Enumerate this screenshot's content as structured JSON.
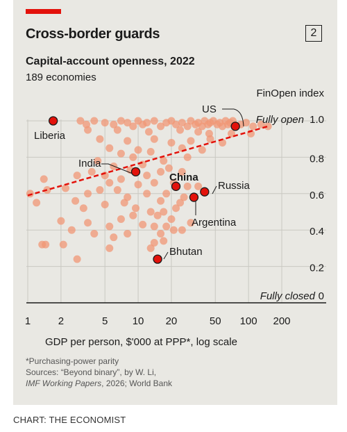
{
  "header": {
    "title": "Cross-border guards",
    "badge": "2",
    "subtitle": "Capital-account openness, 2022",
    "subtitle2": "189 economies"
  },
  "chart_data": {
    "type": "scatter",
    "title": "Cross-border guards",
    "subtitle": "Capital-account openness, 2022",
    "xlabel": "GDP per person, $'000 at PPP*, log scale",
    "ylabel": "FinOpen index",
    "xscale": "log",
    "xlim": [
      1,
      200
    ],
    "ylim": [
      0,
      1.0
    ],
    "x_ticks": [
      {
        "value": 1,
        "label": "1"
      },
      {
        "value": 2,
        "label": "2"
      },
      {
        "value": 5,
        "label": "5"
      },
      {
        "value": 10,
        "label": "10"
      },
      {
        "value": 20,
        "label": "20"
      },
      {
        "value": 50,
        "label": "50"
      },
      {
        "value": 100,
        "label": "100"
      },
      {
        "value": 200,
        "label": "200"
      }
    ],
    "y_ticks": [
      {
        "value": 0,
        "label": "0"
      },
      {
        "value": 0.2,
        "label": "0.2"
      },
      {
        "value": 0.4,
        "label": "0.4"
      },
      {
        "value": 0.6,
        "label": "0.6"
      },
      {
        "value": 0.8,
        "label": "0.8"
      },
      {
        "value": 1.0,
        "label": "1.0"
      }
    ],
    "y_end_labels": {
      "top": "Fully open",
      "bottom": "Fully closed"
    },
    "grid": true,
    "colors": {
      "points": "#f09775",
      "highlight": "#e3120b",
      "trend": "#e3120b"
    },
    "trendline": {
      "x": [
        1,
        150
      ],
      "y": [
        0.59,
        0.97
      ]
    },
    "highlighted": [
      {
        "label": "Liberia",
        "x": 1.7,
        "y": 1.0
      },
      {
        "label": "US",
        "x": 76,
        "y": 0.97
      },
      {
        "label": "India",
        "x": 9.5,
        "y": 0.72
      },
      {
        "label": "China",
        "x": 22,
        "y": 0.64
      },
      {
        "label": "Russia",
        "x": 40,
        "y": 0.61
      },
      {
        "label": "Argentina",
        "x": 32,
        "y": 0.58
      },
      {
        "label": "Bhutan",
        "x": 15,
        "y": 0.24
      }
    ],
    "points": [
      {
        "x": 3,
        "y": 1.0
      },
      {
        "x": 3.4,
        "y": 0.98
      },
      {
        "x": 4,
        "y": 1.0
      },
      {
        "x": 5,
        "y": 0.99
      },
      {
        "x": 6,
        "y": 0.98
      },
      {
        "x": 7,
        "y": 1.0
      },
      {
        "x": 8,
        "y": 0.99
      },
      {
        "x": 9,
        "y": 0.97
      },
      {
        "x": 10,
        "y": 1.0
      },
      {
        "x": 11,
        "y": 0.98
      },
      {
        "x": 12,
        "y": 0.99
      },
      {
        "x": 14,
        "y": 1.0
      },
      {
        "x": 16,
        "y": 0.97
      },
      {
        "x": 18,
        "y": 0.99
      },
      {
        "x": 20,
        "y": 1.0
      },
      {
        "x": 22,
        "y": 0.98
      },
      {
        "x": 25,
        "y": 0.99
      },
      {
        "x": 28,
        "y": 0.97
      },
      {
        "x": 30,
        "y": 1.0
      },
      {
        "x": 33,
        "y": 0.98
      },
      {
        "x": 35,
        "y": 0.99
      },
      {
        "x": 38,
        "y": 0.97
      },
      {
        "x": 40,
        "y": 1.0
      },
      {
        "x": 43,
        "y": 0.98
      },
      {
        "x": 45,
        "y": 0.99
      },
      {
        "x": 48,
        "y": 1.0
      },
      {
        "x": 52,
        "y": 0.98
      },
      {
        "x": 55,
        "y": 0.99
      },
      {
        "x": 58,
        "y": 0.97
      },
      {
        "x": 62,
        "y": 1.0
      },
      {
        "x": 65,
        "y": 0.98
      },
      {
        "x": 68,
        "y": 0.99
      },
      {
        "x": 72,
        "y": 1.0
      },
      {
        "x": 85,
        "y": 0.98
      },
      {
        "x": 95,
        "y": 0.99
      },
      {
        "x": 110,
        "y": 0.97
      },
      {
        "x": 130,
        "y": 0.98
      },
      {
        "x": 150,
        "y": 0.97
      },
      {
        "x": 3.5,
        "y": 0.95
      },
      {
        "x": 6.5,
        "y": 0.95
      },
      {
        "x": 12.5,
        "y": 0.94
      },
      {
        "x": 24,
        "y": 0.95
      },
      {
        "x": 35,
        "y": 0.94
      },
      {
        "x": 44,
        "y": 0.93
      },
      {
        "x": 70,
        "y": 0.93
      },
      {
        "x": 105,
        "y": 0.93
      },
      {
        "x": 4.5,
        "y": 0.9
      },
      {
        "x": 8,
        "y": 0.89
      },
      {
        "x": 14,
        "y": 0.9
      },
      {
        "x": 20,
        "y": 0.88
      },
      {
        "x": 30,
        "y": 0.89
      },
      {
        "x": 45,
        "y": 0.9
      },
      {
        "x": 58,
        "y": 0.88
      },
      {
        "x": 5.5,
        "y": 0.85
      },
      {
        "x": 10,
        "y": 0.84
      },
      {
        "x": 13,
        "y": 0.83
      },
      {
        "x": 25,
        "y": 0.85
      },
      {
        "x": 38,
        "y": 0.84
      },
      {
        "x": 7,
        "y": 0.82
      },
      {
        "x": 17,
        "y": 0.78
      },
      {
        "x": 28,
        "y": 0.8
      },
      {
        "x": 11,
        "y": 0.76
      },
      {
        "x": 4.3,
        "y": 0.78
      },
      {
        "x": 6,
        "y": 0.75
      },
      {
        "x": 19,
        "y": 0.74
      },
      {
        "x": 9,
        "y": 0.8
      },
      {
        "x": 3.8,
        "y": 0.72
      },
      {
        "x": 5,
        "y": 0.7
      },
      {
        "x": 8.5,
        "y": 0.73
      },
      {
        "x": 16,
        "y": 0.72
      },
      {
        "x": 12,
        "y": 0.7
      },
      {
        "x": 25,
        "y": 0.72
      },
      {
        "x": 2.8,
        "y": 0.7
      },
      {
        "x": 5.5,
        "y": 0.66
      },
      {
        "x": 7,
        "y": 0.68
      },
      {
        "x": 10,
        "y": 0.65
      },
      {
        "x": 14,
        "y": 0.66
      },
      {
        "x": 21,
        "y": 0.66
      },
      {
        "x": 28,
        "y": 0.64
      },
      {
        "x": 35,
        "y": 0.64
      },
      {
        "x": 1.4,
        "y": 0.68
      },
      {
        "x": 3.5,
        "y": 0.6
      },
      {
        "x": 4.5,
        "y": 0.62
      },
      {
        "x": 6.5,
        "y": 0.62
      },
      {
        "x": 8,
        "y": 0.58
      },
      {
        "x": 12,
        "y": 0.6
      },
      {
        "x": 16,
        "y": 0.56
      },
      {
        "x": 18,
        "y": 0.6
      },
      {
        "x": 26,
        "y": 0.58
      },
      {
        "x": 1.05,
        "y": 0.6
      },
      {
        "x": 1.5,
        "y": 0.62
      },
      {
        "x": 2.2,
        "y": 0.63
      },
      {
        "x": 2.7,
        "y": 0.56
      },
      {
        "x": 1.2,
        "y": 0.55
      },
      {
        "x": 3.2,
        "y": 0.52
      },
      {
        "x": 5,
        "y": 0.54
      },
      {
        "x": 7.5,
        "y": 0.55
      },
      {
        "x": 9.5,
        "y": 0.52
      },
      {
        "x": 13,
        "y": 0.5
      },
      {
        "x": 15,
        "y": 0.48
      },
      {
        "x": 17,
        "y": 0.5
      },
      {
        "x": 20,
        "y": 0.46
      },
      {
        "x": 22,
        "y": 0.52
      },
      {
        "x": 24,
        "y": 0.55
      },
      {
        "x": 2,
        "y": 0.45
      },
      {
        "x": 2.5,
        "y": 0.4
      },
      {
        "x": 3.5,
        "y": 0.44
      },
      {
        "x": 4,
        "y": 0.38
      },
      {
        "x": 5.5,
        "y": 0.42
      },
      {
        "x": 7,
        "y": 0.46
      },
      {
        "x": 8,
        "y": 0.38
      },
      {
        "x": 11,
        "y": 0.43
      },
      {
        "x": 14,
        "y": 0.42
      },
      {
        "x": 16,
        "y": 0.38
      },
      {
        "x": 18,
        "y": 0.42
      },
      {
        "x": 21,
        "y": 0.4
      },
      {
        "x": 25,
        "y": 0.4
      },
      {
        "x": 30,
        "y": 0.44
      },
      {
        "x": 6,
        "y": 0.36
      },
      {
        "x": 17,
        "y": 0.34
      },
      {
        "x": 1.35,
        "y": 0.32
      },
      {
        "x": 1.45,
        "y": 0.32
      },
      {
        "x": 2.1,
        "y": 0.32
      },
      {
        "x": 5.5,
        "y": 0.3
      },
      {
        "x": 14,
        "y": 0.33
      },
      {
        "x": 13,
        "y": 0.3
      },
      {
        "x": 2.8,
        "y": 0.24
      },
      {
        "x": 9,
        "y": 0.48
      }
    ]
  },
  "footer": {
    "footnote": "*Purchasing-power parity",
    "sources_line1": "Sources: “Beyond binary”, by W. Li,",
    "sources_line2_italic": "IMF Working Papers",
    "sources_line2_rest": ", 2026; World Bank",
    "credit": "CHART: THE ECONOMIST"
  }
}
